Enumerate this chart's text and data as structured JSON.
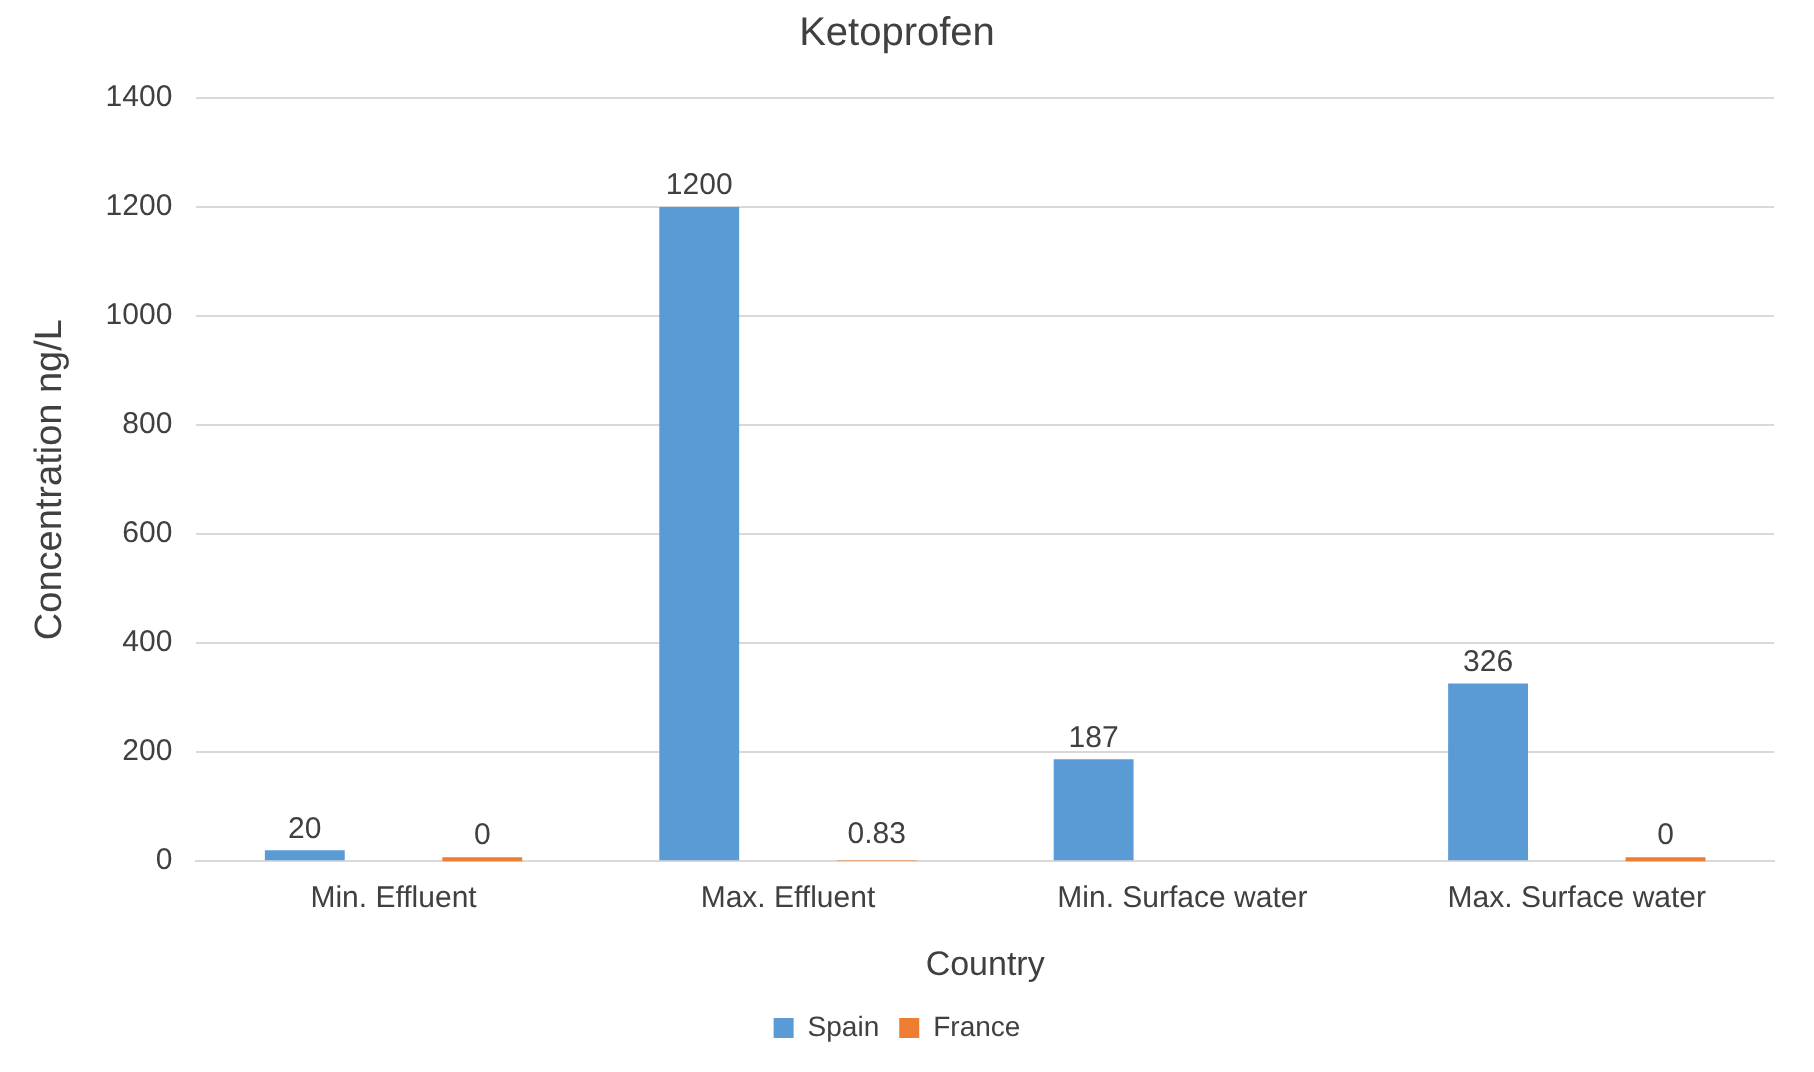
{
  "chart_data": {
    "type": "bar",
    "title": "Ketoprofen",
    "xlabel": "Country",
    "ylabel": "Concentration ng/L",
    "categories": [
      "Min. Effluent",
      "Max. Effluent",
      "Min. Surface water",
      "Max. Surface water"
    ],
    "series": [
      {
        "name": "Spain",
        "color": "#5b9bd5",
        "values": [
          20,
          1200,
          187,
          326
        ]
      },
      {
        "name": "France",
        "color": "#ed7d31",
        "values": [
          0,
          0.83,
          null,
          0
        ]
      }
    ],
    "ylim": [
      0,
      1400
    ],
    "yticks": [
      0,
      200,
      400,
      600,
      800,
      1000,
      1200,
      1400
    ],
    "grid": "y",
    "legend": "bottom",
    "data_labels": true
  }
}
